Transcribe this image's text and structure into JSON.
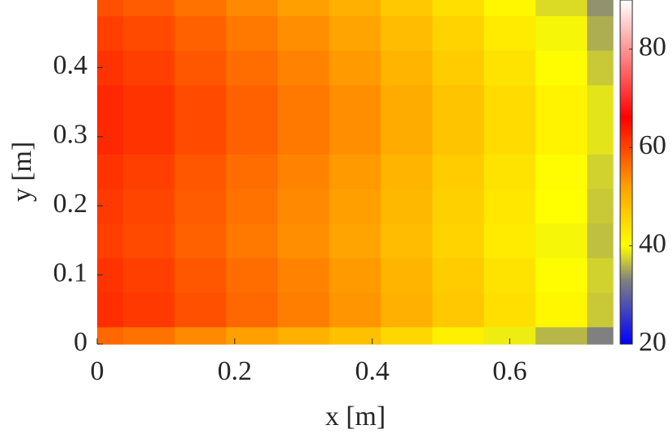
{
  "chart_data": {
    "type": "heatmap",
    "xlabel": "x [m]",
    "ylabel": "y [m]",
    "x": [
      0,
      0.075,
      0.15,
      0.225,
      0.3,
      0.375,
      0.45,
      0.525,
      0.6,
      0.675,
      0.75
    ],
    "y": [
      0,
      0.05,
      0.1,
      0.15,
      0.2,
      0.25,
      0.3,
      0.35,
      0.4,
      0.45,
      0.5
    ],
    "z": [
      [
        57,
        56,
        54,
        52,
        50,
        48,
        45,
        42,
        39,
        36,
        33
      ],
      [
        62,
        61,
        59,
        57,
        55,
        53,
        50,
        47,
        44,
        41,
        37
      ],
      [
        61.5,
        60.5,
        58.5,
        56.5,
        54.5,
        52.5,
        49.5,
        46.5,
        43.5,
        40.5,
        37.5
      ],
      [
        60.5,
        59.5,
        57.5,
        55.5,
        53.5,
        51.5,
        48.5,
        45.5,
        42.5,
        39.5,
        36.5
      ],
      [
        61,
        60,
        58,
        56,
        54,
        52,
        49,
        46,
        43,
        40,
        37
      ],
      [
        61.5,
        60.5,
        58.5,
        56.5,
        54.5,
        52.5,
        49.5,
        46.5,
        43.5,
        40.5,
        37.5
      ],
      [
        62.5,
        61.5,
        59.5,
        57.5,
        55.5,
        53.5,
        50.5,
        47.5,
        44.5,
        41.5,
        38.5
      ],
      [
        62.5,
        61.5,
        59.5,
        57.5,
        55.5,
        53.5,
        50.5,
        47.5,
        44.5,
        41.5,
        38.5
      ],
      [
        61.5,
        60.5,
        58.5,
        56.5,
        54.5,
        52.5,
        49.5,
        46.5,
        43.5,
        40.5,
        37
      ],
      [
        60.5,
        59.5,
        57.5,
        55.5,
        53.5,
        51.5,
        48.5,
        45.5,
        42.5,
        39.5,
        35.5
      ],
      [
        59,
        58,
        56,
        54,
        52,
        50,
        47,
        44,
        41,
        38,
        34
      ]
    ],
    "xlim": [
      0,
      0.75
    ],
    "ylim": [
      0,
      0.5
    ],
    "xticks": [
      0,
      0.2,
      0.4,
      0.6
    ],
    "yticks": [
      0,
      0.1,
      0.2,
      0.3,
      0.4
    ],
    "clim": [
      20,
      90
    ],
    "cticks": [
      20,
      40,
      60,
      80
    ],
    "colormap": [
      [
        20,
        "#0000ff"
      ],
      [
        33,
        "#808080"
      ],
      [
        40,
        "#ffff00"
      ],
      [
        52,
        "#ffa000"
      ],
      [
        66,
        "#ff0000"
      ],
      [
        90,
        "#ffffff"
      ]
    ]
  }
}
